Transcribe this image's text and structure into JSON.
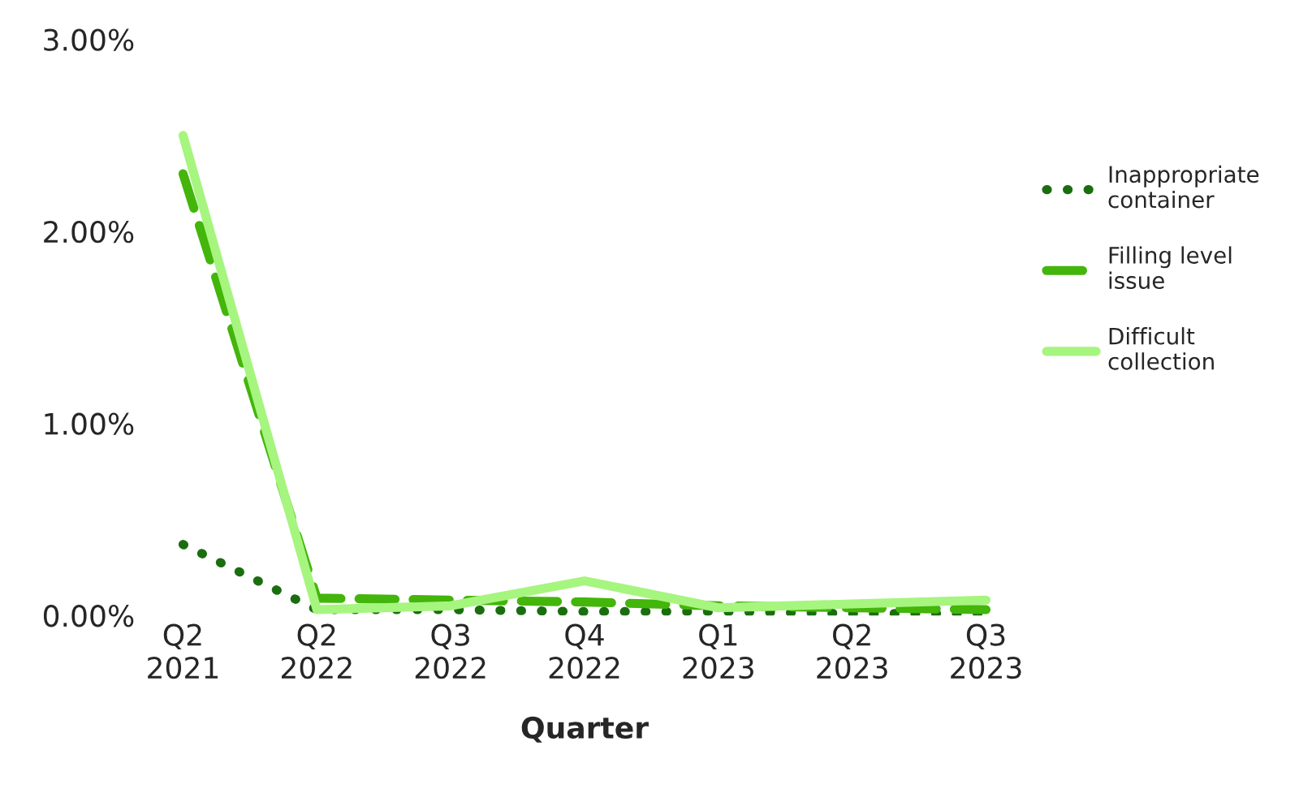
{
  "chart_data": {
    "type": "line",
    "xlabel": "Quarter",
    "categories": [
      "Q2\n2021",
      "Q2\n2022",
      "Q3\n2022",
      "Q4\n2022",
      "Q1\n2023",
      "Q2\n2023",
      "Q3\n2023"
    ],
    "series": [
      {
        "name": "Inappropriate\ncontainer",
        "color": "#1a6e0f",
        "line_style": "dotted",
        "values": [
          0.37,
          0.03,
          0.03,
          0.02,
          0.02,
          0.01,
          0.01
        ]
      },
      {
        "name": "Filling level\nissue",
        "color": "#43b50b",
        "line_style": "dashed",
        "values": [
          2.3,
          0.09,
          0.08,
          0.07,
          0.05,
          0.04,
          0.03
        ]
      },
      {
        "name": "Difficult\ncollection",
        "color": "#a6f57f",
        "line_style": "solid",
        "values": [
          2.5,
          0.03,
          0.05,
          0.18,
          0.04,
          0.06,
          0.08
        ]
      }
    ],
    "ylim": [
      0,
      3
    ],
    "yticks": [
      {
        "value": 0,
        "label": "0.00%"
      },
      {
        "value": 1,
        "label": "1.00%"
      },
      {
        "value": 2,
        "label": "2.00%"
      },
      {
        "value": 3,
        "label": "3.00%"
      }
    ],
    "grid": false,
    "legend": "right",
    "marker": "none"
  }
}
